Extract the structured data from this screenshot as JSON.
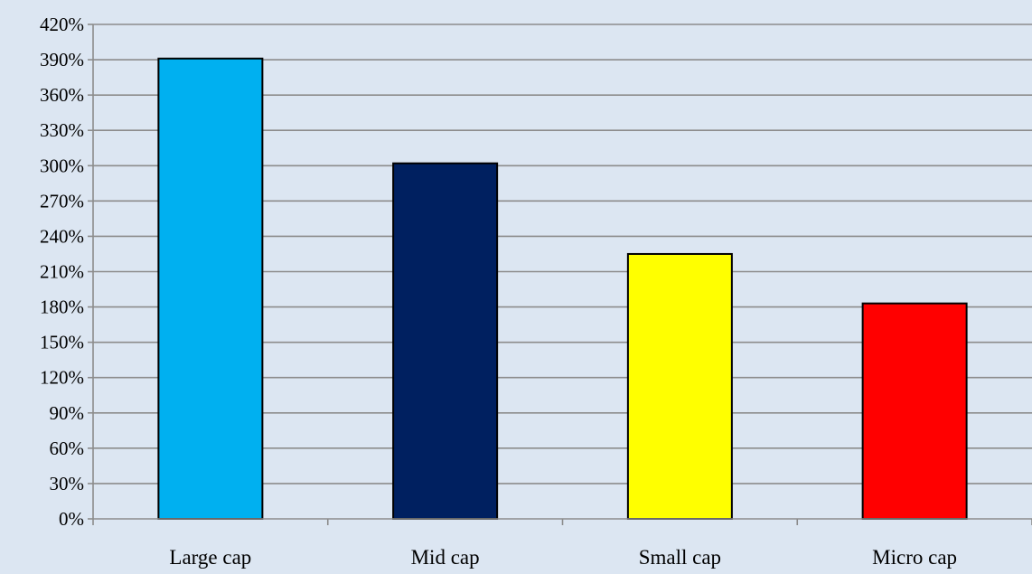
{
  "chart_data": {
    "type": "bar",
    "categories": [
      "Large cap",
      "Mid cap",
      "Small cap",
      "Micro cap"
    ],
    "values": [
      391,
      302,
      225,
      183
    ],
    "value_unit": "%",
    "colors": [
      "#00b0f0",
      "#002060",
      "#ffff00",
      "#ff0000"
    ],
    "title": "",
    "xlabel": "",
    "ylabel": "",
    "ylim": [
      0,
      420
    ],
    "yticks": [
      0,
      30,
      60,
      90,
      120,
      150,
      180,
      210,
      240,
      270,
      300,
      330,
      360,
      390,
      420
    ],
    "ytick_labels": [
      "0%",
      "30%",
      "60%",
      "90%",
      "120%",
      "150%",
      "180%",
      "210%",
      "240%",
      "270%",
      "300%",
      "330%",
      "360%",
      "390%",
      "420%"
    ],
    "grid": true,
    "legend": "none",
    "background_color": "#dce6f2"
  }
}
